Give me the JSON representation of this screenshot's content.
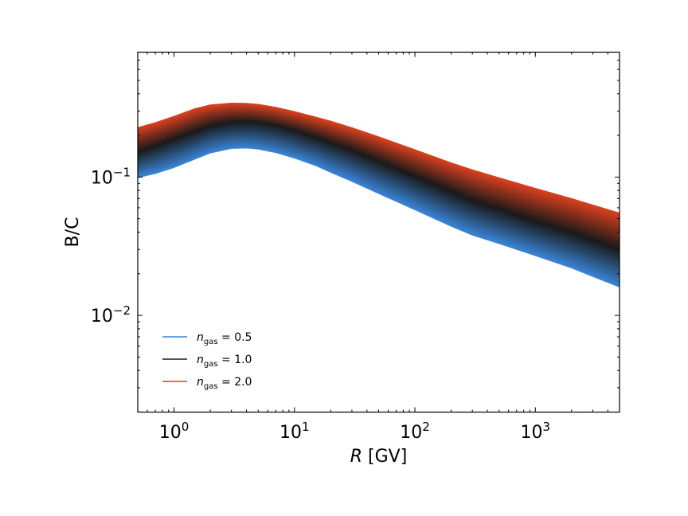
{
  "chart_data": {
    "type": "area",
    "title": "",
    "xlabel": "R [GV]",
    "xlabel_symbol": "R",
    "xlabel_unit": "[GV]",
    "ylabel": "B/C",
    "xscale": "log",
    "yscale": "log",
    "xlim": [
      0.5,
      5000
    ],
    "ylim": [
      0.002,
      0.8
    ],
    "grid": false,
    "legend_position": "lower-left",
    "x_ticks": [
      {
        "value": 1,
        "base": "10",
        "exp": "0"
      },
      {
        "value": 10,
        "base": "10",
        "exp": "1"
      },
      {
        "value": 100,
        "base": "10",
        "exp": "2"
      },
      {
        "value": 1000,
        "base": "10",
        "exp": "3"
      }
    ],
    "y_ticks": [
      {
        "value": 0.01,
        "base": "10",
        "exp": "−2"
      },
      {
        "value": 0.1,
        "base": "10",
        "exp": "−1"
      }
    ],
    "x": [
      0.5,
      0.7,
      1.0,
      1.5,
      2.0,
      3.0,
      4.0,
      5.0,
      7.0,
      10,
      15,
      20,
      30,
      50,
      100,
      200,
      300,
      500,
      1000,
      2000,
      5000
    ],
    "series": [
      {
        "name": "n_gas = 0.5",
        "label_sym": "n",
        "label_sub": "gas",
        "label_val": " = 0.5",
        "color": "#3a86d8",
        "values": [
          0.099,
          0.106,
          0.117,
          0.135,
          0.149,
          0.161,
          0.162,
          0.159,
          0.15,
          0.137,
          0.121,
          0.108,
          0.093,
          0.076,
          0.058,
          0.044,
          0.038,
          0.033,
          0.027,
          0.022,
          0.016
        ]
      },
      {
        "name": "n_gas = 1.0",
        "label_sym": "n",
        "label_sub": "gas",
        "label_val": " = 1.0",
        "color": "#1a1a1a",
        "values": [
          0.153,
          0.169,
          0.189,
          0.215,
          0.235,
          0.251,
          0.253,
          0.249,
          0.237,
          0.218,
          0.195,
          0.178,
          0.157,
          0.131,
          0.102,
          0.079,
          0.068,
          0.059,
          0.048,
          0.04,
          0.03
        ]
      },
      {
        "name": "n_gas = 2.0",
        "label_sym": "n",
        "label_sub": "gas",
        "label_val": " = 2.0",
        "color": "#d8401f",
        "values": [
          0.228,
          0.248,
          0.275,
          0.313,
          0.333,
          0.343,
          0.342,
          0.336,
          0.32,
          0.298,
          0.272,
          0.254,
          0.228,
          0.196,
          0.158,
          0.127,
          0.113,
          0.099,
          0.083,
          0.07,
          0.055
        ]
      }
    ]
  }
}
